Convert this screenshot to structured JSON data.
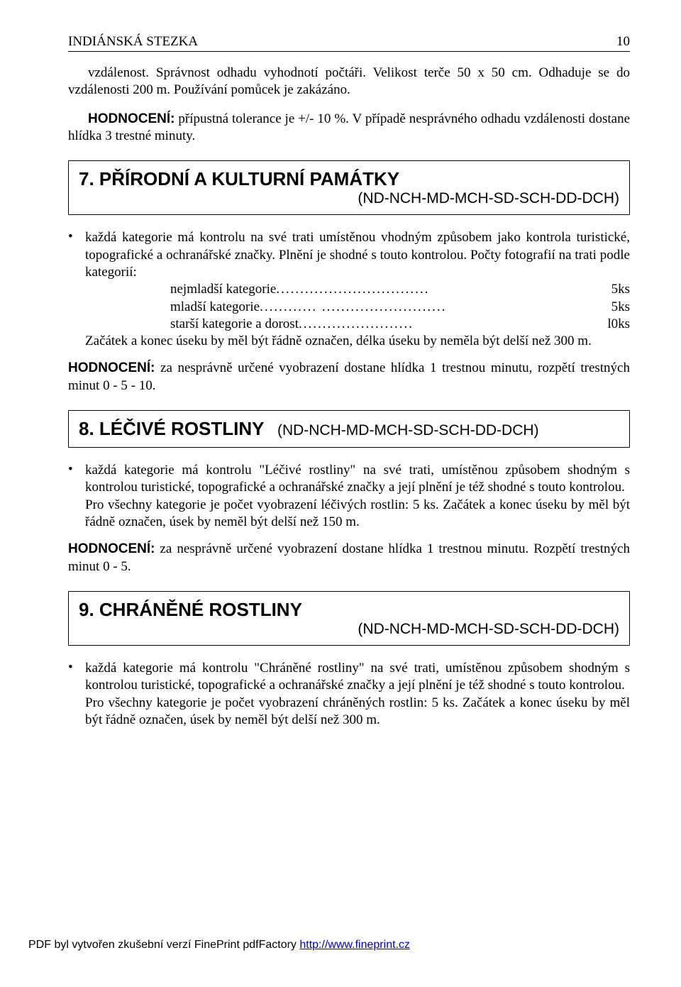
{
  "header": {
    "title": "INDIÁNSKÁ STEZKA",
    "page": "10"
  },
  "intro1": "vzdálenost. Správnost odhadu vyhodnotí počtáři. Velikost terče 50 x 50 cm. Odhaduje se do vzdálenosti 200 m. Používání pomůcek je zakázáno.",
  "hodn_label": "HODNOCENÍ:",
  "intro2_a": " přípustná tolerance je +/- 10 %. V případě nesprávného odhadu vzdálenosti dostane hlídka 3 trestné minuty.",
  "sec7": {
    "title": "7. PŘÍRODNÍ A KULTURNÍ PAMÁTKY",
    "sub": "(ND-NCH-MD-MCH-SD-SCH-DD-DCH)"
  },
  "bul7_a": "každá kategorie má kontrolu na své trati umístěnou vhodným způsobem jako kontrola turistické, topografické a ochranářské značky. Plnění je shodné s touto kontrolou. Počty fotografií na trati podle kategorií:",
  "rows7": [
    {
      "lab": "nejmladší kategorie",
      "dots": "................................",
      "val": "5ks"
    },
    {
      "lab": "mladší kategorie",
      "dots": "............ ..........................",
      "val": "5ks"
    },
    {
      "lab": "starší kategorie a dorost",
      "dots": " ........................",
      "val": "l0ks"
    }
  ],
  "bul7_b": "Začátek a konec úseku by měl být řádně označen, délka úseku by neměla být delší než 300 m.",
  "hodn7": " za nesprávně určené vyobrazení dostane hlídka 1 trestnou minutu, rozpětí trestných minut 0 - 5 - 10.",
  "sec8": {
    "title": "8. LÉČIVÉ ROSTLINY",
    "sub": "(ND-NCH-MD-MCH-SD-SCH-DD-DCH)"
  },
  "bul8_a": "každá kategorie má kontrolu \"Léčivé rostliny\" na své trati, umístěnou způsobem shodným s kontrolou turistické, topografické a ochranářské značky a její plnění je též shodné s touto kontrolou.",
  "bul8_b": "Pro všechny kategorie je počet vyobrazení léčivých rostlin: 5 ks. Začátek a konec úseku by měl být řádně označen, úsek by neměl být delší než 150 m.",
  "hodn8": " za nesprávně určené vyobrazení dostane hlídka 1 trestnou minutu. Rozpětí trestných minut 0 - 5.",
  "sec9": {
    "title": "9. CHRÁNĚNÉ ROSTLINY",
    "sub": "(ND-NCH-MD-MCH-SD-SCH-DD-DCH)"
  },
  "bul9_a": "každá kategorie má kontrolu \"Chráněné rostliny\" na své trati, umístěnou způsobem shodným s kontrolou turistické, topografické a ochranářské značky a její plnění je též shodné s touto kontrolou.",
  "bul9_b": "Pro všechny kategorie je počet vyobrazení chráněných rostlin: 5 ks. Začátek a konec úseku by měl být řádně označen, úsek by neměl být delší než 300 m.",
  "footer": {
    "text": "PDF byl vytvořen zkušební verzí FinePrint pdfFactory ",
    "link_text": "http://www.fineprint.cz",
    "link_href": "http://www.fineprint.cz"
  }
}
